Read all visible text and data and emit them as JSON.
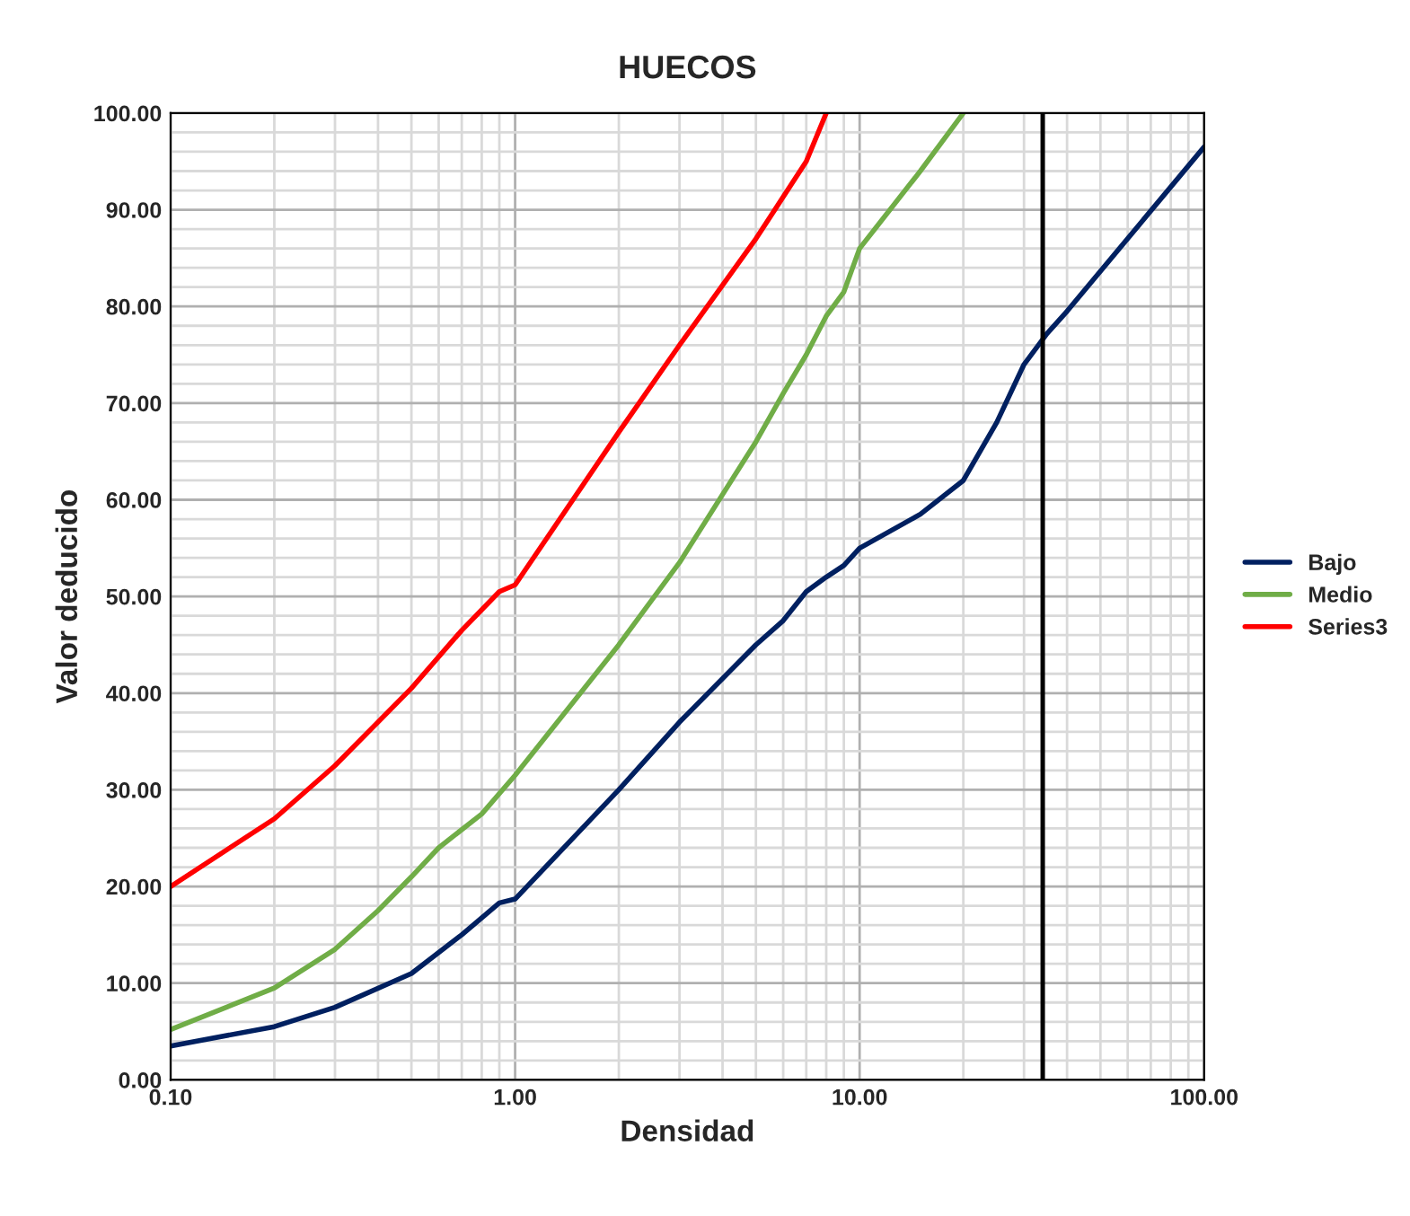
{
  "chart_data": {
    "type": "line",
    "title": "HUECOS",
    "xlabel": "Densidad",
    "ylabel": "Valor deducido",
    "log": "x",
    "grid": true,
    "legend": "right",
    "marker": "none",
    "line_style": "solid",
    "xlim": [
      0.1,
      100
    ],
    "xticks": [
      {
        "value": 0.1,
        "label": "0.10"
      },
      {
        "value": 1,
        "label": "1.00"
      },
      {
        "value": 10,
        "label": "10.00"
      },
      {
        "value": 100,
        "label": "100.00"
      }
    ],
    "ylim": [
      0,
      100
    ],
    "yticks": [
      {
        "value": 0,
        "label": "0.00"
      },
      {
        "value": 10,
        "label": "10.00"
      },
      {
        "value": 20,
        "label": "20.00"
      },
      {
        "value": 30,
        "label": "30.00"
      },
      {
        "value": 40,
        "label": "40.00"
      },
      {
        "value": 50,
        "label": "50.00"
      },
      {
        "value": 60,
        "label": "60.00"
      },
      {
        "value": 70,
        "label": "70.00"
      },
      {
        "value": 80,
        "label": "80.00"
      },
      {
        "value": 90,
        "label": "90.00"
      },
      {
        "value": 100,
        "label": "100.00"
      }
    ],
    "series": [
      {
        "name": "Bajo",
        "color": "#002060",
        "x": [
          0.1,
          0.2,
          0.3,
          0.5,
          0.7,
          0.9,
          1.0,
          2,
          3,
          5,
          6,
          7,
          8,
          9,
          10,
          15,
          20,
          25,
          30,
          35,
          40,
          100
        ],
        "values": [
          3.5,
          5.5,
          7.5,
          11,
          15,
          18.3,
          18.7,
          30,
          37,
          45,
          47.5,
          50.5,
          52,
          53.2,
          55,
          58.5,
          62,
          68,
          74,
          77.2,
          79.5,
          96.5
        ]
      },
      {
        "name": "Medio",
        "color": "#70ad47",
        "x": [
          0.1,
          0.2,
          0.3,
          0.4,
          0.5,
          0.6,
          0.8,
          1.0,
          2,
          3,
          5,
          6,
          7,
          8,
          9,
          10,
          15,
          20
        ],
        "values": [
          5.2,
          9.5,
          13.5,
          17.5,
          21,
          24,
          27.5,
          31.5,
          45,
          53.5,
          66,
          71,
          75,
          79,
          81.5,
          86,
          94,
          100
        ]
      },
      {
        "name": "Series3",
        "color": "#ff0000",
        "x": [
          0.1,
          0.2,
          0.3,
          0.5,
          0.7,
          0.9,
          1.0,
          2,
          3,
          5,
          7,
          8
        ],
        "values": [
          20,
          27,
          32.5,
          40.5,
          46.5,
          50.5,
          51.2,
          67,
          76,
          87,
          95,
          100
        ]
      }
    ],
    "ref_lines": [
      {
        "axis": "x",
        "value": 34,
        "color": "#000000"
      }
    ]
  }
}
